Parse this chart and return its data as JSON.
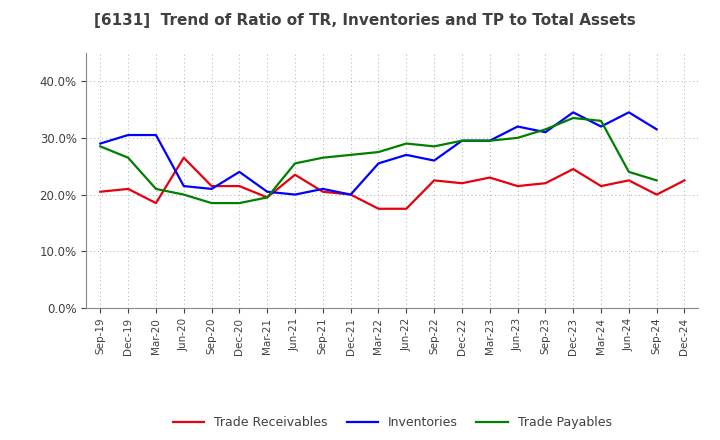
{
  "title": "[6131]  Trend of Ratio of TR, Inventories and TP to Total Assets",
  "x_labels": [
    "Sep-19",
    "Dec-19",
    "Mar-20",
    "Jun-20",
    "Sep-20",
    "Dec-20",
    "Mar-21",
    "Jun-21",
    "Sep-21",
    "Dec-21",
    "Mar-22",
    "Jun-22",
    "Sep-22",
    "Dec-22",
    "Mar-23",
    "Jun-23",
    "Sep-23",
    "Dec-23",
    "Mar-24",
    "Jun-24",
    "Sep-24",
    "Dec-24"
  ],
  "trade_receivables": [
    0.205,
    0.21,
    0.185,
    0.265,
    0.215,
    0.215,
    0.195,
    0.235,
    0.205,
    0.2,
    0.175,
    0.175,
    0.225,
    0.22,
    0.23,
    0.215,
    0.22,
    0.245,
    0.215,
    0.225,
    0.2,
    0.225
  ],
  "inventories": [
    0.29,
    0.305,
    0.305,
    0.215,
    0.21,
    0.24,
    0.205,
    0.2,
    0.21,
    0.2,
    0.255,
    0.27,
    0.26,
    0.295,
    0.295,
    0.32,
    0.31,
    0.345,
    0.32,
    0.345,
    0.315,
    null
  ],
  "trade_payables": [
    0.285,
    0.265,
    0.21,
    0.2,
    0.185,
    0.185,
    0.195,
    0.255,
    0.265,
    0.27,
    0.275,
    0.29,
    0.285,
    0.295,
    0.295,
    0.3,
    0.315,
    0.335,
    0.33,
    0.24,
    0.225,
    null
  ],
  "tr_color": "#e8000d",
  "inv_color": "#0000ff",
  "tp_color": "#008000",
  "ylim": [
    0.0,
    0.45
  ],
  "yticks": [
    0.0,
    0.1,
    0.2,
    0.3,
    0.4
  ],
  "background_color": "#ffffff",
  "grid_color": "#aaaaaa",
  "title_color": "#404040",
  "legend_labels": [
    "Trade Receivables",
    "Inventories",
    "Trade Payables"
  ]
}
